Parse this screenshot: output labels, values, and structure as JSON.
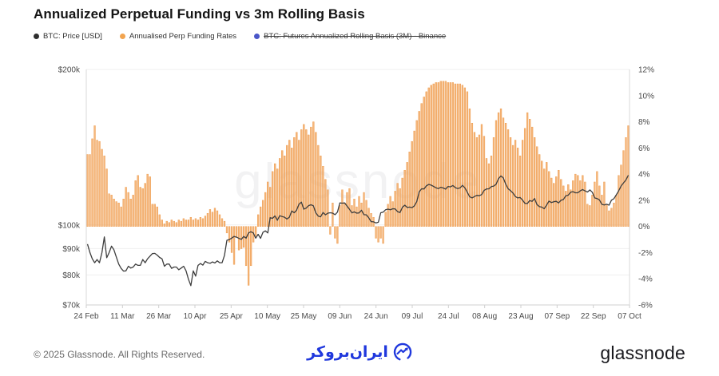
{
  "title": "Annualized Perpetual Funding vs 3m Rolling Basis",
  "watermark": "glassnode",
  "legend": [
    {
      "label": "BTC: Price [USD]",
      "color": "#2e2e2e",
      "disabled": false
    },
    {
      "label": "Annualised Perp Funding Rates",
      "color": "#f2a44f",
      "disabled": false
    },
    {
      "label": "BTC: Futures Annualized Rolling Basis (3M) - Binance",
      "color": "#4a56c8",
      "disabled": true
    }
  ],
  "footer": {
    "copyright": "© 2025 Glassnode. All Rights Reserved.",
    "center_logo_text": "ایران‌بروکر",
    "center_logo_color": "#2038dd",
    "brand": "glassnode"
  },
  "chart_data": {
    "type": "combo",
    "x_tick_labels": [
      "24 Feb",
      "11 Mar",
      "26 Mar",
      "10 Apr",
      "25 Apr",
      "10 May",
      "25 May",
      "09 Jun",
      "24 Jun",
      "09 Jul",
      "24 Jul",
      "08 Aug",
      "23 Aug",
      "07 Sep",
      "22 Sep",
      "07 Oct"
    ],
    "left_axis": {
      "scale": "log",
      "unit": "USD",
      "min_k": 70,
      "max_k": 200,
      "ticks": [
        {
          "label": "$200k",
          "value": 200
        },
        {
          "label": "$100k",
          "value": 100
        },
        {
          "label": "$90k",
          "value": 90
        },
        {
          "label": "$80k",
          "value": 80
        },
        {
          "label": "$70k",
          "value": 70
        }
      ]
    },
    "right_axis": {
      "scale": "linear",
      "unit": "%",
      "min": -6,
      "max": 12,
      "ticks": [
        {
          "label": "12%",
          "value": 12
        },
        {
          "label": "10%",
          "value": 10
        },
        {
          "label": "8%",
          "value": 8
        },
        {
          "label": "6%",
          "value": 6
        },
        {
          "label": "4%",
          "value": 4
        },
        {
          "label": "2%",
          "value": 2
        },
        {
          "label": "0%",
          "value": 0
        },
        {
          "label": "-2%",
          "value": -2
        },
        {
          "label": "-4%",
          "value": -4
        },
        {
          "label": "-6%",
          "value": -6
        }
      ]
    },
    "grid": "horizontal-left-axis-ticks",
    "legend_position": "top-left",
    "series": [
      {
        "name": "BTC: Price [USD]",
        "type": "line",
        "axis": "left",
        "unit": "USD thousands",
        "color": "#3d3d3d",
        "values": [
          91.8,
          88.5,
          86.0,
          84.5,
          85.7,
          84.5,
          88.4,
          94.8,
          86.4,
          88.4,
          91.0,
          89.5,
          86.7,
          84.0,
          82.4,
          81.4,
          81.5,
          83.2,
          82.5,
          82.9,
          84.0,
          83.5,
          83.5,
          85.7,
          84.5,
          86.0,
          87.0,
          88.0,
          88.1,
          87.4,
          86.5,
          86.0,
          83.2,
          84.0,
          84.0,
          82.4,
          82.9,
          82.9,
          81.9,
          82.5,
          83.2,
          81.5,
          78.5,
          76.3,
          81.5,
          79.6,
          83.5,
          84.2,
          83.6,
          85.0,
          84.5,
          84.3,
          84.8,
          84.4,
          85.2,
          84.5,
          84.5,
          87.3,
          93.4,
          93.7,
          94.3,
          95.0,
          94.7,
          94.2,
          93.8,
          95.0,
          94.3,
          96.5,
          97.0,
          96.5,
          94.3,
          95.9,
          94.2,
          96.8,
          97.4,
          96.5,
          103.3,
          103.0,
          104.1,
          102.1,
          104.2,
          103.8,
          103.5,
          102.7,
          103.5,
          106.4,
          105.6,
          106.8,
          109.7,
          110.7,
          107.3,
          107.8,
          109.0,
          109.4,
          108.9,
          105.6,
          104.0,
          103.7,
          105.7,
          104.6,
          105.4,
          105.6,
          105.4,
          104.7,
          105.9,
          110.3,
          110.2,
          110.3,
          108.7,
          107.2,
          105.5,
          106.0,
          105.4,
          105.5,
          106.8,
          104.7,
          104.6,
          103.3,
          101.5,
          101.4,
          100.9,
          101.2,
          105.6,
          105.9,
          107.0,
          107.3,
          107.0,
          107.5,
          107.4,
          106.1,
          105.7,
          108.2,
          109.2,
          108.1,
          108.3,
          108.0,
          108.9,
          111.0,
          115.9,
          117.5,
          117.4,
          119.1,
          119.8,
          119.4,
          118.7,
          118.0,
          117.6,
          118.3,
          117.9,
          117.3,
          118.7,
          118.5,
          119.2,
          118.1,
          117.6,
          118.0,
          119.3,
          118.0,
          115.7,
          113.4,
          112.8,
          113.5,
          114.1,
          113.9,
          114.5,
          116.7,
          117.4,
          117.5,
          118.6,
          118.9,
          119.9,
          122.9,
          124.4,
          123.3,
          120.0,
          117.5,
          116.5,
          115.3,
          113.5,
          112.8,
          113.0,
          111.7,
          110.1,
          110.0,
          111.5,
          111.1,
          112.5,
          109.5,
          108.5,
          108.3,
          107.5,
          109.2,
          111.2,
          110.5,
          110.9,
          111.1,
          110.3,
          111.6,
          112.0,
          113.9,
          114.2,
          115.7,
          116.0,
          115.4,
          115.4,
          116.4,
          117.1,
          116.4,
          115.8,
          116.9,
          115.7,
          112.8,
          112.5,
          111.8,
          109.6,
          109.3,
          109.7,
          109.2,
          111.7,
          112.4,
          114.4,
          116.5,
          119.0,
          120.6,
          122.2,
          124.8
        ]
      },
      {
        "name": "Annualised Perp Funding Rates",
        "type": "bar",
        "axis": "right",
        "unit": "% annualized",
        "color": "#f2a45a",
        "values": [
          5.5,
          5.5,
          6.7,
          7.7,
          6.6,
          6.5,
          5.9,
          5.4,
          4.4,
          2.5,
          2.4,
          2.1,
          1.9,
          1.8,
          1.5,
          2.1,
          3.0,
          2.6,
          2.1,
          2.4,
          3.5,
          3.9,
          3.0,
          2.9,
          3.3,
          4.0,
          3.8,
          1.7,
          1.7,
          1.5,
          0.9,
          0.5,
          0.2,
          0.4,
          0.3,
          0.5,
          0.4,
          0.3,
          0.5,
          0.4,
          0.6,
          0.5,
          0.5,
          0.7,
          0.5,
          0.6,
          0.5,
          0.7,
          0.6,
          0.8,
          1.0,
          1.3,
          1.1,
          1.4,
          1.2,
          0.9,
          0.6,
          0.4,
          -0.5,
          -1.2,
          -2.0,
          -2.9,
          -0.8,
          -1.8,
          -1.7,
          -1.6,
          -3.0,
          -4.5,
          -3.0,
          -1.2,
          -0.7,
          0.9,
          1.5,
          2.0,
          2.6,
          3.4,
          3.0,
          4.2,
          4.8,
          4.4,
          5.2,
          5.8,
          5.4,
          6.2,
          6.6,
          6.0,
          6.8,
          7.2,
          6.6,
          7.4,
          7.8,
          7.4,
          7.0,
          7.6,
          8.0,
          7.2,
          6.2,
          5.4,
          4.6,
          3.6,
          2.8,
          -0.6,
          1.8,
          -0.9,
          -1.3,
          1.6,
          2.8,
          1.8,
          2.6,
          2.9,
          1.6,
          2.1,
          1.5,
          2.3,
          1.8,
          2.6,
          2.0,
          1.4,
          1.0,
          0.7,
          -0.9,
          -1.2,
          -0.9,
          -1.3,
          1.1,
          1.7,
          2.3,
          1.9,
          2.7,
          3.3,
          2.9,
          3.7,
          4.3,
          4.9,
          5.7,
          6.5,
          7.3,
          8.1,
          8.8,
          9.4,
          9.9,
          10.3,
          10.6,
          10.8,
          10.9,
          11.0,
          11.0,
          11.1,
          11.1,
          11.1,
          11.0,
          11.0,
          11.0,
          10.9,
          10.9,
          10.9,
          10.8,
          10.6,
          10.3,
          9.0,
          7.9,
          7.2,
          6.8,
          7.0,
          7.8,
          6.9,
          5.2,
          4.8,
          5.4,
          6.8,
          8.1,
          8.7,
          9.0,
          8.3,
          7.9,
          7.4,
          6.8,
          6.2,
          6.6,
          6.0,
          5.4,
          6.6,
          7.5,
          8.7,
          8.2,
          7.6,
          6.8,
          6.1,
          5.5,
          5.0,
          4.4,
          4.9,
          4.2,
          3.7,
          3.3,
          3.8,
          4.3,
          3.6,
          3.1,
          2.7,
          3.2,
          2.8,
          3.5,
          4.0,
          3.9,
          3.5,
          3.9,
          3.4,
          1.7,
          1.6,
          2.4,
          3.4,
          4.2,
          3.1,
          2.4,
          3.4,
          1.7,
          1.2,
          1.4,
          1.8,
          2.4,
          3.9,
          4.7,
          5.8,
          6.8,
          7.7
        ]
      },
      {
        "name": "BTC: Futures Annualized Rolling Basis (3M) - Binance",
        "type": "line",
        "axis": "right",
        "color": "#4a56c8",
        "hidden": true,
        "values": []
      }
    ]
  }
}
